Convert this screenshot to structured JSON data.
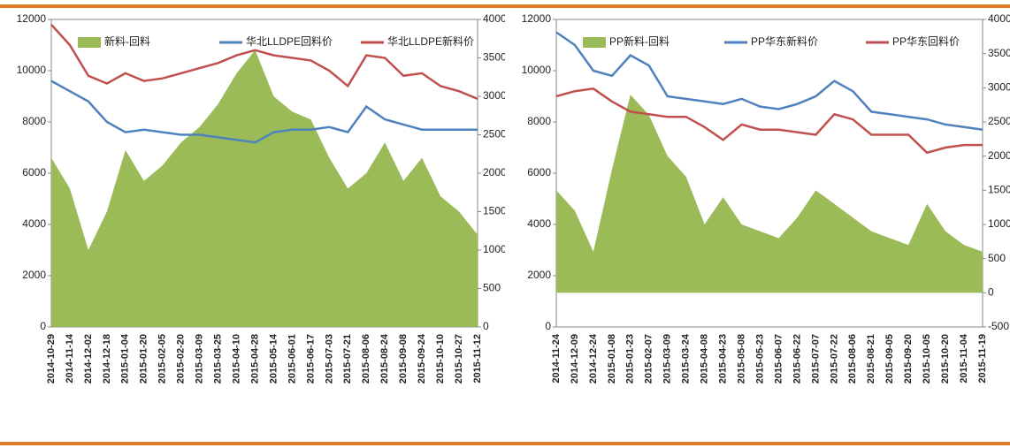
{
  "chart_data": [
    {
      "type": "combo",
      "categories": [
        "2014-10-29",
        "2014-11-14",
        "2014-12-02",
        "2014-12-18",
        "2015-01-04",
        "2015-01-20",
        "2015-02-05",
        "2015-02-20",
        "2015-03-09",
        "2015-03-25",
        "2015-04-10",
        "2015-04-28",
        "2015-05-14",
        "2015-06-01",
        "2015-06-17",
        "2015-07-03",
        "2015-07-21",
        "2015-08-06",
        "2015-08-24",
        "2015-09-08",
        "2015-09-24",
        "2015-10-10",
        "2015-10-27",
        "2015-11-12"
      ],
      "series": [
        {
          "name": "新料-回料",
          "color": "#9bbb59",
          "kind": "area",
          "axis": "y2",
          "values": [
            2200,
            1800,
            1000,
            1500,
            2300,
            1900,
            2100,
            2400,
            2600,
            2900,
            3300,
            3600,
            3000,
            2800,
            2700,
            2200,
            1800,
            2000,
            2400,
            1900,
            2200,
            1700,
            1500,
            1200
          ]
        },
        {
          "name": "华北LLDPE回料价",
          "color": "#4f81bd",
          "kind": "line",
          "values": [
            9600,
            9200,
            8800,
            8000,
            7600,
            7700,
            7600,
            7500,
            7500,
            7400,
            7300,
            7200,
            7600,
            7700,
            7700,
            7800,
            7600,
            8600,
            8100,
            7900,
            7700,
            7700,
            7700,
            7700
          ]
        },
        {
          "name": "华北LLDPE新料价",
          "color": "#c0504d",
          "kind": "line",
          "values": [
            11800,
            11000,
            9800,
            9500,
            9900,
            9600,
            9700,
            9900,
            10100,
            10300,
            10600,
            10800,
            10600,
            10500,
            10400,
            10000,
            9400,
            10600,
            10500,
            9800,
            9900,
            9400,
            9200,
            8900
          ]
        }
      ],
      "ylim": [
        0,
        12000
      ],
      "yticks": [
        0,
        2000,
        4000,
        6000,
        8000,
        10000,
        12000
      ],
      "y2lim": [
        0,
        4000
      ],
      "y2ticks": [
        0,
        500,
        1000,
        1500,
        2000,
        2500,
        3000,
        3500,
        4000
      ]
    },
    {
      "type": "combo",
      "categories": [
        "2014-11-24",
        "2014-12-09",
        "2014-12-24",
        "2015-01-08",
        "2015-01-23",
        "2015-02-07",
        "2015-03-09",
        "2015-03-24",
        "2015-04-08",
        "2015-04-23",
        "2015-05-08",
        "2015-05-23",
        "2015-06-07",
        "2015-06-22",
        "2015-07-07",
        "2015-07-22",
        "2015-08-06",
        "2015-08-21",
        "2015-09-05",
        "2015-09-20",
        "2015-10-05",
        "2015-10-20",
        "2015-11-04",
        "2015-11-19"
      ],
      "series": [
        {
          "name": "PP新料-回料",
          "color": "#9bbb59",
          "kind": "area",
          "axis": "y2",
          "values": [
            1500,
            1200,
            600,
            1800,
            2900,
            2600,
            2000,
            1700,
            1000,
            1400,
            1000,
            900,
            800,
            1100,
            1500,
            1300,
            1100,
            900,
            800,
            700,
            1300,
            900,
            700,
            600
          ]
        },
        {
          "name": "PP华东新料价",
          "color": "#4f81bd",
          "kind": "line",
          "values": [
            11500,
            11000,
            10000,
            9800,
            10600,
            10200,
            9000,
            8900,
            8800,
            8700,
            8900,
            8600,
            8500,
            8700,
            9000,
            9600,
            9200,
            8400,
            8300,
            8200,
            8100,
            7900,
            7800,
            7700
          ]
        },
        {
          "name": "PP华东回料价",
          "color": "#c0504d",
          "kind": "line",
          "values": [
            9000,
            9200,
            9300,
            8800,
            8400,
            8300,
            8200,
            8200,
            7800,
            7300,
            7900,
            7700,
            7700,
            7600,
            7500,
            8300,
            8100,
            7500,
            7500,
            7500,
            6800,
            7000,
            7100,
            7100
          ]
        }
      ],
      "ylim": [
        0,
        12000
      ],
      "yticks": [
        0,
        2000,
        4000,
        6000,
        8000,
        10000,
        12000
      ],
      "y2lim": [
        -500,
        4000
      ],
      "y2ticks": [
        -500,
        0,
        500,
        1000,
        1500,
        2000,
        2500,
        3000,
        3500,
        4000
      ]
    }
  ]
}
